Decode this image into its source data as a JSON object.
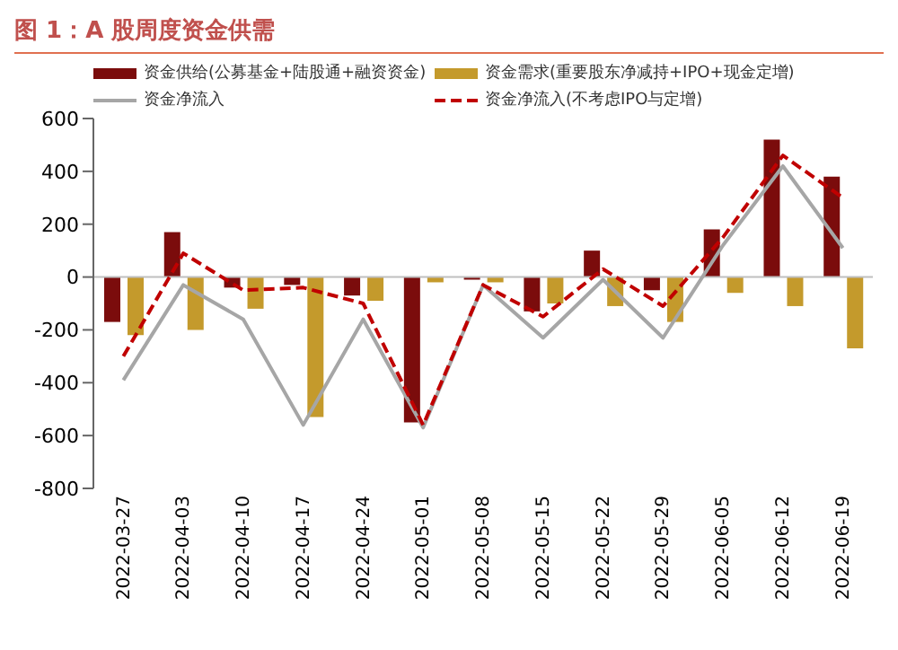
{
  "chart_data": {
    "type": "bar",
    "title": "图 1：A 股周度资金供需",
    "categories": [
      "2022-03-27",
      "2022-04-03",
      "2022-04-10",
      "2022-04-17",
      "2022-04-24",
      "2022-05-01",
      "2022-05-08",
      "2022-05-15",
      "2022-05-22",
      "2022-05-29",
      "2022-06-05",
      "2022-06-12",
      "2022-06-19"
    ],
    "series": [
      {
        "name": "资金供给(公募基金+陆股通+融资资金)",
        "color": "#7b0c0c",
        "values": [
          -170,
          170,
          -40,
          -30,
          -70,
          -550,
          -10,
          -130,
          100,
          -50,
          180,
          520,
          380
        ]
      },
      {
        "name": "资金需求(重要股东净减持+IPO+现金定增)",
        "color": "#c49a2c",
        "values": [
          -220,
          -200,
          -120,
          -530,
          -90,
          -20,
          -20,
          -100,
          -110,
          -170,
          -60,
          -110,
          -270
        ]
      },
      {
        "name": "资金净流入",
        "type": "line",
        "color": "#a6a6a6",
        "line_style": "solid",
        "values": [
          -390,
          -30,
          -160,
          -560,
          -160,
          -570,
          -30,
          -230,
          -10,
          -230,
          120,
          420,
          110
        ]
      },
      {
        "name": "资金净流入(不考虑IPO与定增)",
        "type": "line",
        "color": "#c00000",
        "line_style": "dashed",
        "values": [
          -300,
          90,
          -50,
          -40,
          -100,
          -560,
          -30,
          -150,
          30,
          -110,
          150,
          460,
          300
        ]
      }
    ],
    "ylim": [
      -800,
      600
    ],
    "yticks": [
      -800,
      -600,
      -400,
      -200,
      0,
      200,
      400,
      600
    ],
    "ref_lines": [
      {
        "axis": "y",
        "value": 0,
        "color": "#bfbfbf"
      }
    ],
    "grid": false,
    "legend": "top",
    "marker": "none"
  }
}
